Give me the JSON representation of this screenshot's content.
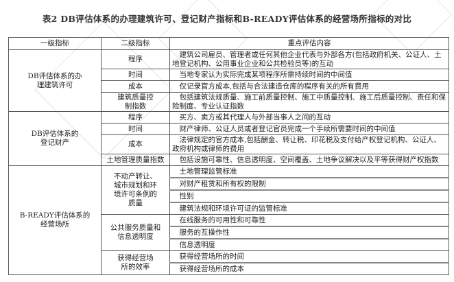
{
  "title": "表2 DB评估体系的办理建筑许可、登记财产指标和B-READY评估体系的经营场所指标的对比",
  "headers": [
    "一级指标",
    "二级指标",
    "重点评估内容"
  ],
  "groups": [
    {
      "level1": "DB评估体系的办理建筑许可",
      "rows": [
        {
          "level2": "程序",
          "content": "建筑公司雇员、管理者或任何其他企业代表与外部各方(包括政府机关、公证人、土地登记机构、公用事业企业和公共检验员等)的互动"
        },
        {
          "level2": "时间",
          "content": "当地专家认为实际完成某项程序所需持续时间的中间值"
        },
        {
          "level2": "成本",
          "content": "仅记录官方成本,包括与合法建造仓库的程序有关的所有费用"
        },
        {
          "level2": "建筑质量控制指数",
          "content": "包括建筑法规质量、施工前质量控制、施工中质量控制、施工后质量控制、责任和保险制度、专业认证指数"
        }
      ]
    },
    {
      "level1": "DB评估体系的登记财产",
      "rows": [
        {
          "level2": "程序",
          "content": "买方、卖方或其代理人与外部当事人之间的互动"
        },
        {
          "level2": "时间",
          "content": "财产律师、公证人员或者登记官员完成一个手续所需要时间的中间值"
        },
        {
          "level2": "成本",
          "content": "法律规定的官方成本,包括酬金、转让税、印花税及支付给产权登记机构、公证人、政府机构或律师的费用"
        },
        {
          "level2": "土地管理质量指数",
          "content": "包括设施可靠性、信息透明度、空间覆盖、土地争议解决以及平等获得财产权指数"
        }
      ]
    },
    {
      "level1": "B-READY评估体系的经营场所",
      "subgroups": [
        {
          "level2": "不动产转让、城市规划和环境许可条例的质量",
          "contents": [
            "土地管理监管标准",
            "对财产租赁和所有权的限制",
            "性别",
            "建筑法规和环境许可证的监管标准"
          ]
        },
        {
          "level2": "公共服务质量和信息透明度",
          "contents": [
            "在线服务的可用性和可靠性",
            "服务的互操作性",
            "信息透明度"
          ]
        },
        {
          "level2": "获得经营场所的效率",
          "contents": [
            "获得经营场所的时间",
            "获得经营场所的成本"
          ]
        }
      ]
    }
  ]
}
